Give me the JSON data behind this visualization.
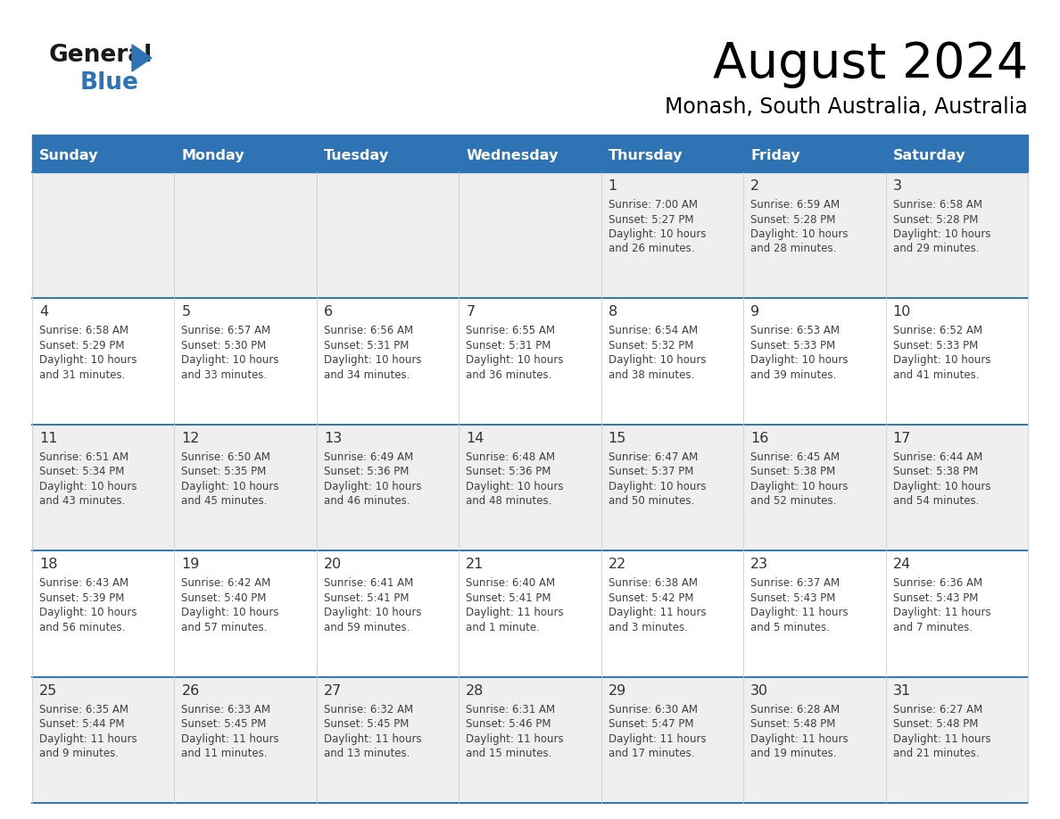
{
  "title": "August 2024",
  "subtitle": "Monash, South Australia, Australia",
  "header_bg": "#2E74B5",
  "header_text_color": "#FFFFFF",
  "day_names": [
    "Sunday",
    "Monday",
    "Tuesday",
    "Wednesday",
    "Thursday",
    "Friday",
    "Saturday"
  ],
  "cell_bg_light": "#EFEFEF",
  "cell_bg_white": "#FFFFFF",
  "cell_border_color": "#2E74B5",
  "text_color": "#404040",
  "day_num_color": "#333333",
  "days": [
    {
      "day": 1,
      "col": 4,
      "row": 0,
      "sunrise": "7:00 AM",
      "sunset": "5:27 PM",
      "daylight": "10 hours and 26 minutes."
    },
    {
      "day": 2,
      "col": 5,
      "row": 0,
      "sunrise": "6:59 AM",
      "sunset": "5:28 PM",
      "daylight": "10 hours and 28 minutes."
    },
    {
      "day": 3,
      "col": 6,
      "row": 0,
      "sunrise": "6:58 AM",
      "sunset": "5:28 PM",
      "daylight": "10 hours and 29 minutes."
    },
    {
      "day": 4,
      "col": 0,
      "row": 1,
      "sunrise": "6:58 AM",
      "sunset": "5:29 PM",
      "daylight": "10 hours and 31 minutes."
    },
    {
      "day": 5,
      "col": 1,
      "row": 1,
      "sunrise": "6:57 AM",
      "sunset": "5:30 PM",
      "daylight": "10 hours and 33 minutes."
    },
    {
      "day": 6,
      "col": 2,
      "row": 1,
      "sunrise": "6:56 AM",
      "sunset": "5:31 PM",
      "daylight": "10 hours and 34 minutes."
    },
    {
      "day": 7,
      "col": 3,
      "row": 1,
      "sunrise": "6:55 AM",
      "sunset": "5:31 PM",
      "daylight": "10 hours and 36 minutes."
    },
    {
      "day": 8,
      "col": 4,
      "row": 1,
      "sunrise": "6:54 AM",
      "sunset": "5:32 PM",
      "daylight": "10 hours and 38 minutes."
    },
    {
      "day": 9,
      "col": 5,
      "row": 1,
      "sunrise": "6:53 AM",
      "sunset": "5:33 PM",
      "daylight": "10 hours and 39 minutes."
    },
    {
      "day": 10,
      "col": 6,
      "row": 1,
      "sunrise": "6:52 AM",
      "sunset": "5:33 PM",
      "daylight": "10 hours and 41 minutes."
    },
    {
      "day": 11,
      "col": 0,
      "row": 2,
      "sunrise": "6:51 AM",
      "sunset": "5:34 PM",
      "daylight": "10 hours and 43 minutes."
    },
    {
      "day": 12,
      "col": 1,
      "row": 2,
      "sunrise": "6:50 AM",
      "sunset": "5:35 PM",
      "daylight": "10 hours and 45 minutes."
    },
    {
      "day": 13,
      "col": 2,
      "row": 2,
      "sunrise": "6:49 AM",
      "sunset": "5:36 PM",
      "daylight": "10 hours and 46 minutes."
    },
    {
      "day": 14,
      "col": 3,
      "row": 2,
      "sunrise": "6:48 AM",
      "sunset": "5:36 PM",
      "daylight": "10 hours and 48 minutes."
    },
    {
      "day": 15,
      "col": 4,
      "row": 2,
      "sunrise": "6:47 AM",
      "sunset": "5:37 PM",
      "daylight": "10 hours and 50 minutes."
    },
    {
      "day": 16,
      "col": 5,
      "row": 2,
      "sunrise": "6:45 AM",
      "sunset": "5:38 PM",
      "daylight": "10 hours and 52 minutes."
    },
    {
      "day": 17,
      "col": 6,
      "row": 2,
      "sunrise": "6:44 AM",
      "sunset": "5:38 PM",
      "daylight": "10 hours and 54 minutes."
    },
    {
      "day": 18,
      "col": 0,
      "row": 3,
      "sunrise": "6:43 AM",
      "sunset": "5:39 PM",
      "daylight": "10 hours and 56 minutes."
    },
    {
      "day": 19,
      "col": 1,
      "row": 3,
      "sunrise": "6:42 AM",
      "sunset": "5:40 PM",
      "daylight": "10 hours and 57 minutes."
    },
    {
      "day": 20,
      "col": 2,
      "row": 3,
      "sunrise": "6:41 AM",
      "sunset": "5:41 PM",
      "daylight": "10 hours and 59 minutes."
    },
    {
      "day": 21,
      "col": 3,
      "row": 3,
      "sunrise": "6:40 AM",
      "sunset": "5:41 PM",
      "daylight": "11 hours and 1 minute."
    },
    {
      "day": 22,
      "col": 4,
      "row": 3,
      "sunrise": "6:38 AM",
      "sunset": "5:42 PM",
      "daylight": "11 hours and 3 minutes."
    },
    {
      "day": 23,
      "col": 5,
      "row": 3,
      "sunrise": "6:37 AM",
      "sunset": "5:43 PM",
      "daylight": "11 hours and 5 minutes."
    },
    {
      "day": 24,
      "col": 6,
      "row": 3,
      "sunrise": "6:36 AM",
      "sunset": "5:43 PM",
      "daylight": "11 hours and 7 minutes."
    },
    {
      "day": 25,
      "col": 0,
      "row": 4,
      "sunrise": "6:35 AM",
      "sunset": "5:44 PM",
      "daylight": "11 hours and 9 minutes."
    },
    {
      "day": 26,
      "col": 1,
      "row": 4,
      "sunrise": "6:33 AM",
      "sunset": "5:45 PM",
      "daylight": "11 hours and 11 minutes."
    },
    {
      "day": 27,
      "col": 2,
      "row": 4,
      "sunrise": "6:32 AM",
      "sunset": "5:45 PM",
      "daylight": "11 hours and 13 minutes."
    },
    {
      "day": 28,
      "col": 3,
      "row": 4,
      "sunrise": "6:31 AM",
      "sunset": "5:46 PM",
      "daylight": "11 hours and 15 minutes."
    },
    {
      "day": 29,
      "col": 4,
      "row": 4,
      "sunrise": "6:30 AM",
      "sunset": "5:47 PM",
      "daylight": "11 hours and 17 minutes."
    },
    {
      "day": 30,
      "col": 5,
      "row": 4,
      "sunrise": "6:28 AM",
      "sunset": "5:48 PM",
      "daylight": "11 hours and 19 minutes."
    },
    {
      "day": 31,
      "col": 6,
      "row": 4,
      "sunrise": "6:27 AM",
      "sunset": "5:48 PM",
      "daylight": "11 hours and 21 minutes."
    }
  ]
}
